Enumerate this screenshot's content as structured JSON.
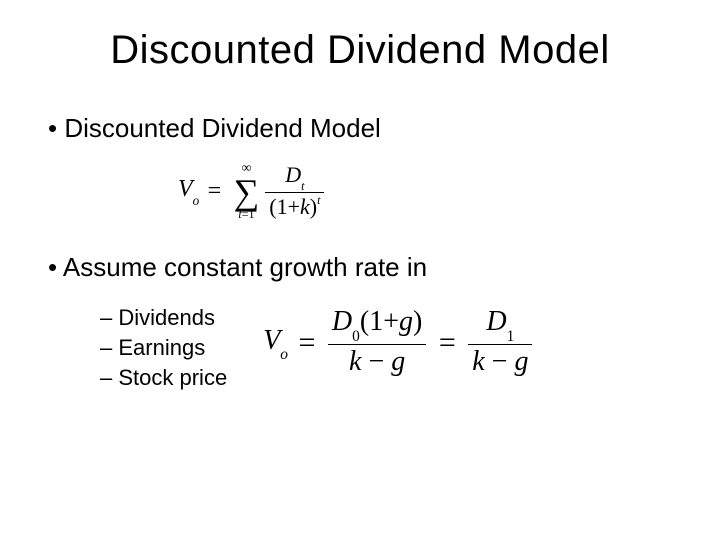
{
  "title": "Discounted Dividend Model",
  "bullets": {
    "b1": "Discounted Dividend Model",
    "b2": "Assume constant growth rate in",
    "sub1": "Dividends",
    "sub2": "Earnings",
    "sub3": "Stock price"
  },
  "formula1": {
    "lhs_var": "V",
    "lhs_sub": "o",
    "sigma_top": "∞",
    "sigma_bot_lhs": "t",
    "sigma_bot_rhs": "1",
    "num_var": "D",
    "num_sub": "t",
    "den_open": "(",
    "den_one": "1",
    "den_plus": "+",
    "den_k": "k",
    "den_close": ")",
    "den_exp": "t"
  },
  "formula2": {
    "lhs_var": "V",
    "lhs_sub": "o",
    "f1_num_D": "D",
    "f1_num_Dsub": "0",
    "f1_num_open": "(",
    "f1_num_one": "1",
    "f1_num_plus": "+",
    "f1_num_g": "g",
    "f1_num_close": ")",
    "f1_den_k": "k",
    "f1_den_minus": "−",
    "f1_den_g": "g",
    "f2_num_D": "D",
    "f2_num_Dsub": "1",
    "f2_den_k": "k",
    "f2_den_minus": "−",
    "f2_den_g": "g"
  },
  "styles": {
    "title_fontsize": 40,
    "bullet1_fontsize": 26,
    "bullet2_fontsize": 22,
    "formula1_fontsize": 24,
    "formula2_fontsize": 30,
    "text_color": "#000000",
    "background_color": "#ffffff"
  }
}
